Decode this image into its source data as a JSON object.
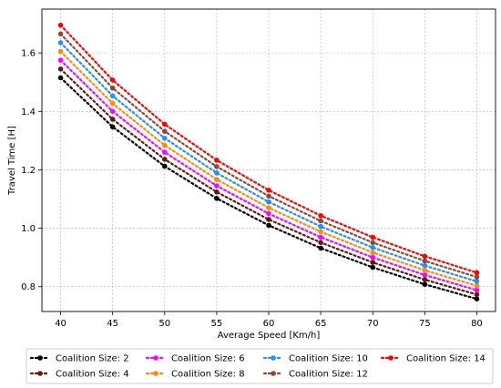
{
  "chart_data": {
    "type": "line",
    "xlabel": "Average Speed [Km/h]",
    "ylabel": "Travel Time [H]",
    "x": [
      40,
      45,
      50,
      55,
      60,
      65,
      70,
      75,
      80
    ],
    "xticks": [
      "40",
      "45",
      "50",
      "55",
      "60",
      "65",
      "70",
      "75",
      "80"
    ],
    "yticks": [
      "0.8",
      "1.0",
      "1.2",
      "1.4",
      "1.6"
    ],
    "xlim": [
      38.2,
      81.8
    ],
    "ylim": [
      0.715,
      1.75
    ],
    "grid": true,
    "legend_placement": "bottom",
    "series": [
      {
        "name": "Coalition Size: 2",
        "color": "#000000",
        "values": [
          1.515,
          1.347,
          1.212,
          1.102,
          1.01,
          0.932,
          0.866,
          0.808,
          0.758
        ]
      },
      {
        "name": "Coalition Size: 4",
        "color": "#5c1e0c",
        "values": [
          1.545,
          1.373,
          1.236,
          1.124,
          1.03,
          0.951,
          0.883,
          0.824,
          0.773
        ]
      },
      {
        "name": "Coalition Size: 6",
        "color": "#ff00ff",
        "values": [
          1.575,
          1.4,
          1.26,
          1.145,
          1.05,
          0.969,
          0.9,
          0.84,
          0.788
        ]
      },
      {
        "name": "Coalition Size: 8",
        "color": "#ff8c00",
        "values": [
          1.605,
          1.427,
          1.284,
          1.167,
          1.07,
          0.988,
          0.917,
          0.856,
          0.803
        ]
      },
      {
        "name": "Coalition Size: 10",
        "color": "#1e90ff",
        "values": [
          1.635,
          1.453,
          1.308,
          1.189,
          1.09,
          1.006,
          0.934,
          0.872,
          0.818
        ]
      },
      {
        "name": "Coalition Size: 12",
        "color": "#8b4a36",
        "values": [
          1.665,
          1.48,
          1.332,
          1.211,
          1.11,
          1.025,
          0.951,
          0.888,
          0.833
        ]
      },
      {
        "name": "Coalition Size: 14",
        "color": "#ff0000",
        "values": [
          1.695,
          1.507,
          1.356,
          1.233,
          1.13,
          1.043,
          0.969,
          0.904,
          0.848
        ]
      }
    ]
  }
}
